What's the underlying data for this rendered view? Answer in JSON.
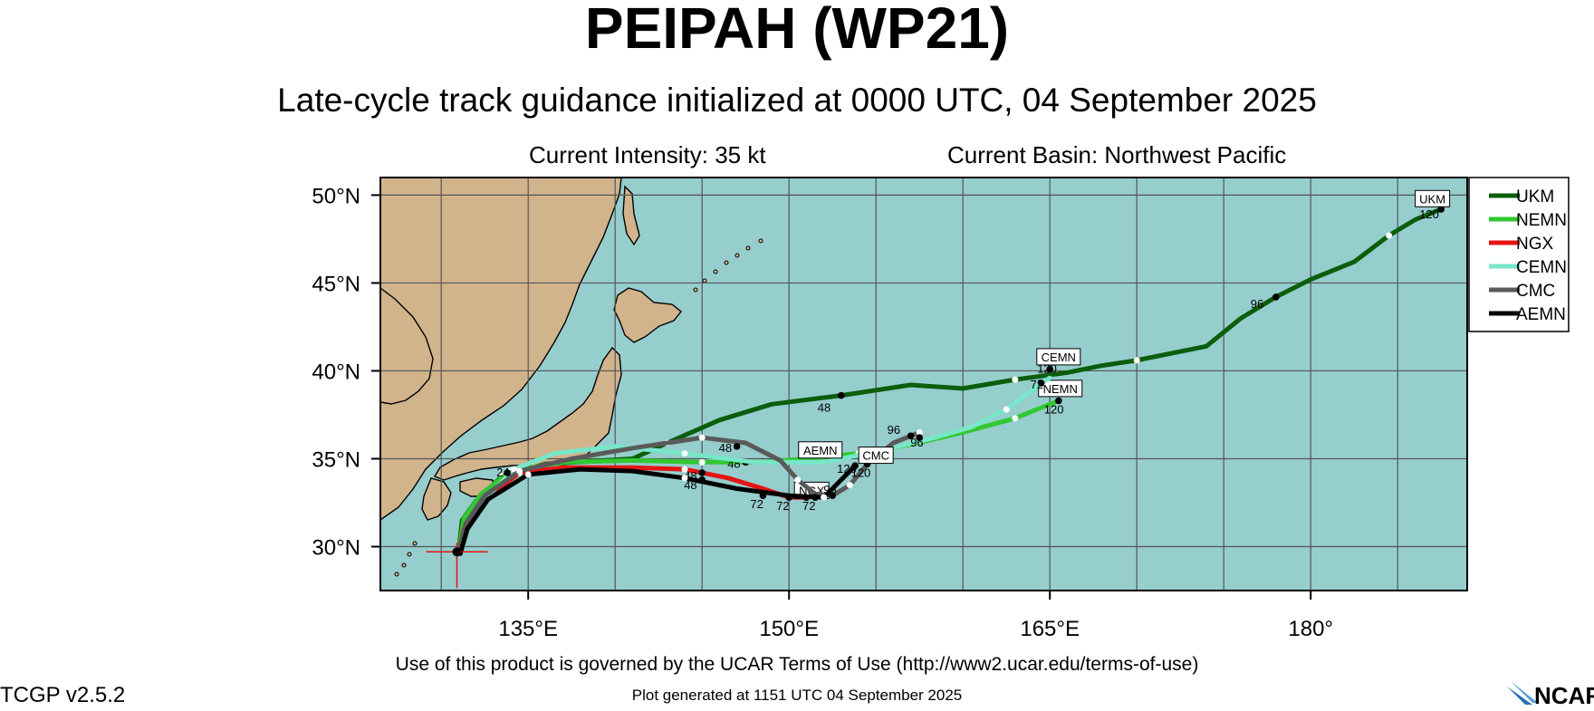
{
  "header": {
    "title": "PEIPAH (WP21)",
    "subtitle": "Late-cycle track guidance initialized at 0000 UTC, 04 September 2025",
    "intensity": "Current Intensity: 35 kt",
    "basin": "Current Basin: Northwest Pacific"
  },
  "footer": {
    "terms": "Use of this product is governed by the UCAR Terms of Use (http://www2.ucar.edu/terms-of-use)",
    "generated": "Plot generated at 1151 UTC   04 September 2025",
    "version": "TCGP v2.5.2",
    "logo_text": "NCAR"
  },
  "map": {
    "lon_range": [
      126.5,
      189
    ],
    "lat_range": [
      27.5,
      51
    ],
    "lon_ticks": [
      {
        "lon": 135,
        "label": "135°E"
      },
      {
        "lon": 150,
        "label": "150°E"
      },
      {
        "lon": 165,
        "label": "165°E"
      },
      {
        "lon": 180,
        "label": "180°"
      }
    ],
    "lat_ticks": [
      {
        "lat": 50,
        "label": "50°N"
      },
      {
        "lat": 45,
        "label": "45°N"
      },
      {
        "lat": 40,
        "label": "40°N"
      },
      {
        "lat": 35,
        "label": "35°N"
      },
      {
        "lat": 30,
        "label": "30°N"
      }
    ],
    "ocean_color": "#96cdcd",
    "land_color": "#d2b48c",
    "storm_position": {
      "lon": 130.9,
      "lat": 29.7
    }
  },
  "legend": [
    {
      "model": "UKM",
      "color": "#0b5e0b"
    },
    {
      "model": "NEMN",
      "color": "#32c832"
    },
    {
      "model": "NGX",
      "color": "#e61414"
    },
    {
      "model": "CEMN",
      "color": "#78e6c8"
    },
    {
      "model": "CMC",
      "color": "#5a5a5a"
    },
    {
      "model": "AEMN",
      "color": "#000000"
    }
  ],
  "tracks": [
    {
      "model": "UKM",
      "color": "#0b5e0b",
      "points": [
        [
          131.0,
          29.7
        ],
        [
          131.2,
          31.5
        ],
        [
          132.0,
          32.6
        ],
        [
          133.5,
          34.0
        ],
        [
          136.0,
          34.7
        ],
        [
          141.0,
          35.0
        ],
        [
          143.0,
          35.9
        ],
        [
          146.0,
          37.2
        ],
        [
          149.0,
          38.1
        ],
        [
          153.0,
          38.6
        ],
        [
          157.0,
          39.2
        ],
        [
          160.0,
          39.0
        ],
        [
          163.0,
          39.5
        ],
        [
          166.0,
          39.9
        ],
        [
          168.0,
          40.3
        ],
        [
          170.0,
          40.6
        ],
        [
          174.0,
          41.4
        ],
        [
          176.0,
          43.0
        ],
        [
          178.0,
          44.2
        ],
        [
          180.0,
          45.2
        ],
        [
          182.5,
          46.2
        ],
        [
          184.5,
          47.7
        ],
        [
          186.0,
          48.6
        ],
        [
          187.5,
          49.2
        ]
      ],
      "hour_points": [
        {
          "hour": "48",
          "lon": 153.0,
          "lat": 38.6,
          "dx": -26,
          "dy": 18
        },
        {
          "hour": "96",
          "lon": 178.0,
          "lat": 44.2,
          "dx": -28,
          "dy": 12
        },
        {
          "hour": "120",
          "lon": 187.5,
          "lat": 49.2,
          "dx": -24,
          "dy": 10
        }
      ],
      "label": {
        "text": "UKM",
        "lon": 187.0,
        "lat": 49.8
      }
    },
    {
      "model": "NEMN",
      "color": "#32c832",
      "points": [
        [
          131.0,
          29.7
        ],
        [
          131.3,
          31.6
        ],
        [
          132.3,
          33.0
        ],
        [
          134.0,
          34.3
        ],
        [
          137.0,
          34.8
        ],
        [
          141.0,
          34.9
        ],
        [
          145.0,
          34.8
        ],
        [
          148.5,
          34.8
        ],
        [
          151.0,
          35.0
        ],
        [
          154.0,
          35.3
        ],
        [
          157.0,
          35.8
        ],
        [
          160.0,
          36.5
        ],
        [
          163.0,
          37.3
        ],
        [
          165.5,
          38.3
        ]
      ],
      "hour_points": [
        {
          "hour": "48",
          "lon": 147.5,
          "lat": 34.8,
          "dx": -20,
          "dy": 6
        },
        {
          "hour": "120",
          "lon": 165.5,
          "lat": 38.3,
          "dx": -16,
          "dy": 14
        }
      ],
      "label": {
        "text": "NEMN",
        "lon": 165.6,
        "lat": 39.0
      }
    },
    {
      "model": "NGX",
      "color": "#e61414",
      "points": [
        [
          131.0,
          29.6
        ],
        [
          131.3,
          31.0
        ],
        [
          132.5,
          32.7
        ],
        [
          134.5,
          34.2
        ],
        [
          137.0,
          34.5
        ],
        [
          141.0,
          34.5
        ],
        [
          144.0,
          34.4
        ],
        [
          146.5,
          33.9
        ],
        [
          148.5,
          33.3
        ],
        [
          150.0,
          32.8
        ],
        [
          151.0,
          32.8
        ]
      ],
      "hour_points": [
        {
          "hour": "48",
          "lon": 145.0,
          "lat": 34.2,
          "dx": -20,
          "dy": 8
        },
        {
          "hour": "72",
          "lon": 150.0,
          "lat": 32.8,
          "dx": -14,
          "dy": 14
        },
        {
          "hour": "96",
          "lon": 151.0,
          "lat": 32.8,
          "dx": -6,
          "dy": -4
        }
      ],
      "label": {
        "text": "NGX",
        "lon": 151.3,
        "lat": 33.2
      }
    },
    {
      "model": "CEMN",
      "color": "#78e6c8",
      "points": [
        [
          131.2,
          29.8
        ],
        [
          131.6,
          31.2
        ],
        [
          132.6,
          32.8
        ],
        [
          134.2,
          34.4
        ],
        [
          136.5,
          35.3
        ],
        [
          140.0,
          35.7
        ],
        [
          144.0,
          35.3
        ],
        [
          148.0,
          34.8
        ],
        [
          152.0,
          34.8
        ],
        [
          155.0,
          35.4
        ],
        [
          158.0,
          36.1
        ],
        [
          160.5,
          36.8
        ],
        [
          162.5,
          37.8
        ],
        [
          164.5,
          39.3
        ],
        [
          165.0,
          39.6
        ]
      ],
      "hour_points": [
        {
          "hour": "72",
          "lon": 164.5,
          "lat": 39.3,
          "dx": -12,
          "dy": 6
        },
        {
          "hour": "120",
          "lon": 165.0,
          "lat": 40.1,
          "dx": -14,
          "dy": 4
        }
      ],
      "label": {
        "text": "CEMN",
        "lon": 165.5,
        "lat": 40.8
      }
    },
    {
      "model": "CMC",
      "color": "#5a5a5a",
      "points": [
        [
          131.0,
          29.7
        ],
        [
          131.4,
          31.3
        ],
        [
          132.5,
          32.9
        ],
        [
          134.5,
          34.3
        ],
        [
          137.5,
          35.0
        ],
        [
          141.0,
          35.6
        ],
        [
          145.0,
          36.2
        ],
        [
          147.5,
          35.9
        ],
        [
          149.5,
          34.9
        ],
        [
          150.5,
          33.8
        ],
        [
          151.5,
          33.0
        ],
        [
          152.5,
          32.9
        ],
        [
          153.5,
          33.5
        ],
        [
          154.5,
          34.7
        ],
        [
          156.0,
          35.9
        ],
        [
          157.5,
          36.5
        ]
      ],
      "hour_points": [
        {
          "hour": "96",
          "lon": 152.5,
          "lat": 32.9,
          "dx": -10,
          "dy": -2
        },
        {
          "hour": "96",
          "lon": 157.0,
          "lat": 36.3,
          "dx": -26,
          "dy": -2
        },
        {
          "hour": "96",
          "lon": 157.5,
          "lat": 36.2,
          "dx": -10,
          "dy": 10
        },
        {
          "hour": "48",
          "lon": 147.0,
          "lat": 35.7,
          "dx": -20,
          "dy": 6
        },
        {
          "hour": "120",
          "lon": 154.5,
          "lat": 34.7,
          "dx": -18,
          "dy": 14
        }
      ],
      "label": {
        "text": "CMC",
        "lon": 155.0,
        "lat": 35.2
      }
    },
    {
      "model": "AEMN",
      "color": "#000000",
      "points": [
        [
          131.1,
          29.6
        ],
        [
          131.5,
          31.0
        ],
        [
          132.7,
          32.7
        ],
        [
          135.0,
          34.1
        ],
        [
          138.0,
          34.4
        ],
        [
          141.0,
          34.3
        ],
        [
          144.0,
          33.9
        ],
        [
          147.0,
          33.3
        ],
        [
          150.0,
          32.9
        ],
        [
          152.0,
          32.8
        ],
        [
          153.0,
          33.8
        ],
        [
          153.8,
          34.6
        ]
      ],
      "hour_points": [
        {
          "hour": "48",
          "lon": 145.0,
          "lat": 33.8,
          "dx": -20,
          "dy": 10
        },
        {
          "hour": "72",
          "lon": 148.5,
          "lat": 32.9,
          "dx": -14,
          "dy": 14
        },
        {
          "hour": "72",
          "lon": 151.5,
          "lat": 32.8,
          "dx": -14,
          "dy": 14
        },
        {
          "hour": "120",
          "lon": 153.8,
          "lat": 34.6,
          "dx": -20,
          "dy": 8
        },
        {
          "hour": "24",
          "lon": 133.8,
          "lat": 34.2,
          "dx": -12,
          "dy": 4
        }
      ],
      "label": {
        "text": "AEMN",
        "lon": 151.8,
        "lat": 35.5
      }
    }
  ]
}
